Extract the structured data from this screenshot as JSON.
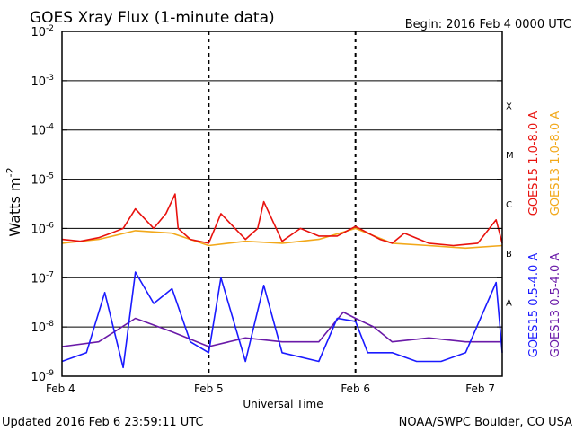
{
  "title": "GOES Xray Flux (1-minute data)",
  "begin_label": "Begin:  2016 Feb 4 0000 UTC",
  "y_axis_title": "Watts m",
  "y_axis_title_superscript": "-2",
  "x_axis_title": "Universal Time",
  "footer": {
    "updated": "Updated 2016 Feb  6 23:59:11 UTC",
    "credit": "NOAA/SWPC Boulder, CO USA"
  },
  "colors": {
    "goes15_long": "#e8120e",
    "goes13_long": "#f2a81a",
    "goes15_short": "#1a1aff",
    "goes13_short": "#6a1aa8",
    "axes": "#000000",
    "background": "#ffffff"
  },
  "chart_data": {
    "type": "line",
    "title": "GOES Xray Flux (1-minute data)",
    "xlabel": "Universal Time",
    "ylabel": "Watts m^-2",
    "y_scale": "log",
    "ylim": [
      1e-09,
      0.01
    ],
    "xlim": [
      "2016-02-04 00:00",
      "2016-02-07 00:00"
    ],
    "x_ticks": [
      "Feb 4",
      "Feb 5",
      "Feb 6",
      "Feb 7"
    ],
    "y_ticks": [
      {
        "value": 1e-09,
        "base": "10",
        "exp": "-9"
      },
      {
        "value": 1e-08,
        "base": "10",
        "exp": "-8"
      },
      {
        "value": 1e-07,
        "base": "10",
        "exp": "-7"
      },
      {
        "value": 1e-06,
        "base": "10",
        "exp": "-6"
      },
      {
        "value": 1e-05,
        "base": "10",
        "exp": "-5"
      },
      {
        "value": 0.0001,
        "base": "10",
        "exp": "-4"
      },
      {
        "value": 0.001,
        "base": "10",
        "exp": "-3"
      },
      {
        "value": 0.01,
        "base": "10",
        "exp": "-2"
      }
    ],
    "flare_classes": [
      {
        "label": "X",
        "lower": 0.0001
      },
      {
        "label": "M",
        "lower": 1e-05
      },
      {
        "label": "C",
        "lower": 1e-06
      },
      {
        "label": "B",
        "lower": 1e-07
      },
      {
        "label": "A",
        "lower": 1e-08
      }
    ],
    "grid": "horizontal lines at each decade; dashed vertical lines at each day",
    "legend_position": "right",
    "series": [
      {
        "name": "GOES15 1.0-8.0 A",
        "x": [
          "2016-02-04 00:00",
          "2016-02-04 03:00",
          "2016-02-04 06:00",
          "2016-02-04 08:00",
          "2016-02-04 10:00",
          "2016-02-04 12:00",
          "2016-02-04 15:00",
          "2016-02-04 17:00",
          "2016-02-04 18:30",
          "2016-02-04 19:00",
          "2016-02-04 21:00",
          "2016-02-05 00:00",
          "2016-02-05 02:00",
          "2016-02-05 06:00",
          "2016-02-05 08:00",
          "2016-02-05 09:00",
          "2016-02-05 12:00",
          "2016-02-05 15:00",
          "2016-02-05 18:00",
          "2016-02-05 21:00",
          "2016-02-06 00:00",
          "2016-02-06 04:00",
          "2016-02-06 06:00",
          "2016-02-06 08:00",
          "2016-02-06 12:00",
          "2016-02-06 16:00",
          "2016-02-06 20:00",
          "2016-02-06 23:00",
          "2016-02-07 00:00"
        ],
        "y": [
          6e-07,
          5.5e-07,
          6.5e-07,
          8e-07,
          1e-06,
          2.5e-06,
          1e-06,
          2e-06,
          5e-06,
          1e-06,
          6e-07,
          5e-07,
          2e-06,
          6e-07,
          1e-06,
          3.5e-06,
          5.5e-07,
          1e-06,
          7e-07,
          7e-07,
          1.1e-06,
          6e-07,
          5e-07,
          8e-07,
          5e-07,
          4.5e-07,
          5e-07,
          1.5e-06,
          5e-07
        ]
      },
      {
        "name": "GOES13 1.0-8.0 A",
        "x": [
          "2016-02-04 00:00",
          "2016-02-04 06:00",
          "2016-02-04 12:00",
          "2016-02-04 18:00",
          "2016-02-05 00:00",
          "2016-02-05 06:00",
          "2016-02-05 12:00",
          "2016-02-05 18:00",
          "2016-02-06 00:00",
          "2016-02-06 06:00",
          "2016-02-06 12:00",
          "2016-02-06 18:00",
          "2016-02-07 00:00"
        ],
        "y": [
          5e-07,
          6e-07,
          9e-07,
          8e-07,
          4.5e-07,
          5.5e-07,
          5e-07,
          6e-07,
          1e-06,
          5e-07,
          4.5e-07,
          4e-07,
          4.5e-07
        ]
      },
      {
        "name": "GOES15 0.5-4.0 A",
        "x": [
          "2016-02-04 00:00",
          "2016-02-04 04:00",
          "2016-02-04 07:00",
          "2016-02-04 10:00",
          "2016-02-04 12:00",
          "2016-02-04 15:00",
          "2016-02-04 18:00",
          "2016-02-04 21:00",
          "2016-02-05 00:00",
          "2016-02-05 02:00",
          "2016-02-05 06:00",
          "2016-02-05 09:00",
          "2016-02-05 12:00",
          "2016-02-05 18:00",
          "2016-02-05 21:00",
          "2016-02-06 00:00",
          "2016-02-06 02:00",
          "2016-02-06 06:00",
          "2016-02-06 10:00",
          "2016-02-06 14:00",
          "2016-02-06 18:00",
          "2016-02-06 23:00",
          "2016-02-07 00:00"
        ],
        "y": [
          2e-09,
          3e-09,
          5e-08,
          1.5e-09,
          1.3e-07,
          3e-08,
          6e-08,
          5e-09,
          3e-09,
          1e-07,
          2e-09,
          7e-08,
          3e-09,
          2e-09,
          1.5e-08,
          1.3e-08,
          3e-09,
          3e-09,
          2e-09,
          2e-09,
          3e-09,
          8e-08,
          3e-09
        ]
      },
      {
        "name": "GOES13 0.5-4.0 A",
        "x": [
          "2016-02-04 00:00",
          "2016-02-04 06:00",
          "2016-02-04 12:00",
          "2016-02-04 18:00",
          "2016-02-05 00:00",
          "2016-02-05 06:00",
          "2016-02-05 12:00",
          "2016-02-05 18:00",
          "2016-02-05 22:00",
          "2016-02-06 00:00",
          "2016-02-06 03:00",
          "2016-02-06 06:00",
          "2016-02-06 12:00",
          "2016-02-06 18:00",
          "2016-02-07 00:00"
        ],
        "y": [
          4e-09,
          5e-09,
          1.5e-08,
          8e-09,
          4e-09,
          6e-09,
          5e-09,
          5e-09,
          2e-08,
          1.5e-08,
          1e-08,
          5e-09,
          6e-09,
          5e-09,
          5e-09
        ]
      }
    ]
  }
}
